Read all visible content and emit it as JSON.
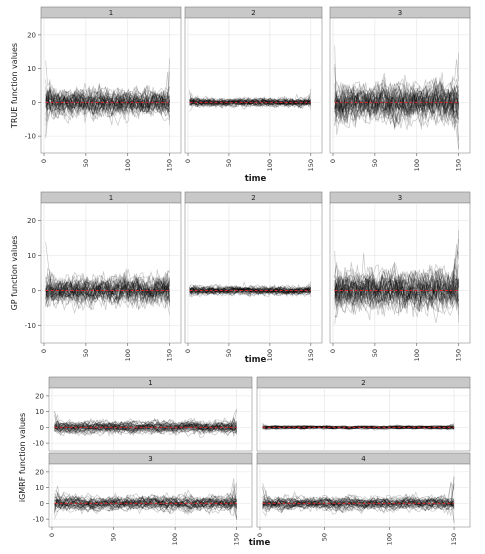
{
  "chart_data": [
    {
      "type": "line",
      "ylabel": "TRUE function values",
      "xlabel": "time",
      "xlim": [
        0,
        160
      ],
      "ylim": [
        -15,
        25
      ],
      "xticks": [
        0,
        50,
        100,
        150
      ],
      "yticks": [
        -10,
        0,
        10,
        20
      ],
      "grid": true,
      "panels": [
        {
          "label": "1",
          "spread": 3.2,
          "peak_start": 14,
          "peak_end": 13
        },
        {
          "label": "2",
          "spread": 1.0,
          "peak_start": 4,
          "peak_end": 4
        },
        {
          "label": "3",
          "spread": 4.6,
          "peak_start": 17,
          "peak_end": 22
        }
      ]
    },
    {
      "type": "line",
      "ylabel": "GP function values",
      "xlabel": "time",
      "xlim": [
        0,
        160
      ],
      "ylim": [
        -15,
        25
      ],
      "xticks": [
        0,
        50,
        100,
        150
      ],
      "yticks": [
        -10,
        0,
        10,
        20
      ],
      "grid": true,
      "panels": [
        {
          "label": "1",
          "spread": 3.2,
          "peak_start": 14,
          "peak_end": 12
        },
        {
          "label": "2",
          "spread": 1.0,
          "peak_start": 3,
          "peak_end": 3
        },
        {
          "label": "3",
          "spread": 4.6,
          "peak_start": 15,
          "peak_end": 22
        }
      ]
    },
    {
      "type": "line",
      "ylabel": "iGMRF function values",
      "xlabel": "time",
      "xlim": [
        0,
        160
      ],
      "ylim": [
        -15,
        25
      ],
      "xticks": [
        0,
        50,
        100,
        150
      ],
      "yticks": [
        -10,
        0,
        10,
        20
      ],
      "grid": true,
      "panels": [
        {
          "label": "1",
          "spread": 3.4,
          "peak_start": 14,
          "peak_end": 12
        },
        {
          "label": "2",
          "spread": 0.9,
          "peak_start": 3,
          "peak_end": 3
        },
        {
          "label": "3",
          "spread": 4.0,
          "peak_start": 16,
          "peak_end": 22
        },
        {
          "label": "4",
          "spread": 3.6,
          "peak_start": 14,
          "peak_end": 20
        }
      ]
    }
  ],
  "style": {
    "panel_background": "#ffffff",
    "strip_background": "#c8c8c8",
    "strip_border": "#7f7f7f",
    "grid_color": "#e3e3e3",
    "trace_color": "#000000",
    "mean_color": "#d62728"
  }
}
